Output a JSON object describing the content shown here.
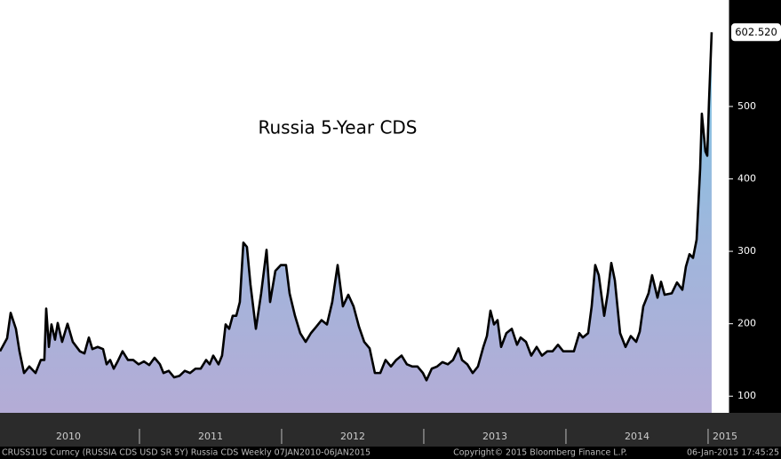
{
  "chart_data": {
    "type": "line",
    "title": "Russia 5-Year CDS",
    "x": [
      2010.019,
      2010.069,
      2010.094,
      2010.131,
      2010.156,
      2010.188,
      2010.225,
      2010.269,
      2010.306,
      2010.331,
      2010.344,
      2010.363,
      2010.381,
      2010.406,
      2010.425,
      2010.456,
      2010.494,
      2010.531,
      2010.581,
      2010.613,
      2010.644,
      2010.669,
      2010.706,
      2010.744,
      2010.769,
      2010.794,
      2010.819,
      2010.844,
      2010.881,
      2010.919,
      2010.956,
      2010.994,
      2011.031,
      2011.069,
      2011.106,
      2011.144,
      2011.169,
      2011.206,
      2011.244,
      2011.281,
      2011.319,
      2011.356,
      2011.394,
      2011.431,
      2011.469,
      2011.494,
      2011.519,
      2011.556,
      2011.581,
      2011.606,
      2011.631,
      2011.656,
      2011.681,
      2011.706,
      2011.731,
      2011.756,
      2011.781,
      2011.819,
      2011.856,
      2011.894,
      2011.919,
      2011.956,
      2011.994,
      2012.031,
      2012.056,
      2012.094,
      2012.131,
      2012.169,
      2012.206,
      2012.244,
      2012.281,
      2012.319,
      2012.356,
      2012.394,
      2012.431,
      2012.469,
      2012.506,
      2012.544,
      2012.581,
      2012.619,
      2012.656,
      2012.694,
      2012.731,
      2012.769,
      2012.806,
      2012.844,
      2012.881,
      2012.919,
      2012.956,
      2012.994,
      2013.019,
      2013.056,
      2013.094,
      2013.131,
      2013.169,
      2013.206,
      2013.244,
      2013.269,
      2013.306,
      2013.344,
      2013.381,
      2013.419,
      2013.444,
      2013.469,
      2013.494,
      2013.519,
      2013.544,
      2013.581,
      2013.619,
      2013.656,
      2013.681,
      2013.719,
      2013.756,
      2013.794,
      2013.831,
      2013.869,
      2013.906,
      2013.944,
      2013.981,
      2014.019,
      2014.056,
      2014.094,
      2014.119,
      2014.156,
      2014.181,
      2014.206,
      2014.231,
      2014.269,
      2014.294,
      2014.319,
      2014.344,
      2014.381,
      2014.419,
      2014.456,
      2014.494,
      2014.519,
      2014.544,
      2014.581,
      2014.606,
      2014.644,
      2014.669,
      2014.694,
      2014.744,
      2014.781,
      2014.819,
      2014.844,
      2014.869,
      2014.894,
      2014.919,
      2014.944,
      2014.956,
      2014.981,
      2014.994,
      2015.006,
      2015.025
    ],
    "values": [
      162,
      180,
      215,
      193,
      162,
      132,
      141,
      132,
      150,
      150,
      221,
      168,
      199,
      178,
      201,
      175,
      200,
      175,
      162,
      159,
      181,
      165,
      168,
      165,
      144,
      150,
      138,
      147,
      162,
      150,
      150,
      144,
      148,
      143,
      153,
      144,
      132,
      135,
      126,
      128,
      135,
      132,
      138,
      138,
      150,
      144,
      156,
      144,
      156,
      199,
      193,
      211,
      211,
      230,
      312,
      306,
      254,
      193,
      242,
      302,
      230,
      273,
      281,
      281,
      242,
      211,
      187,
      175,
      187,
      196,
      205,
      199,
      230,
      281,
      224,
      240,
      224,
      196,
      175,
      166,
      132,
      132,
      150,
      141,
      150,
      156,
      144,
      141,
      141,
      132,
      122,
      138,
      141,
      147,
      144,
      150,
      166,
      150,
      144,
      132,
      141,
      168,
      183,
      218,
      199,
      205,
      168,
      187,
      193,
      171,
      181,
      175,
      156,
      168,
      156,
      162,
      162,
      171,
      162,
      162,
      162,
      187,
      181,
      187,
      224,
      281,
      267,
      211,
      242,
      284,
      260,
      187,
      168,
      183,
      175,
      189,
      224,
      242,
      267,
      236,
      258,
      240,
      242,
      257,
      247,
      279,
      296,
      291,
      316,
      414,
      490,
      438,
      432,
      505,
      602.52
    ],
    "value_labels": [
      null,
      null,
      null,
      null,
      null,
      null,
      null,
      null,
      null,
      null,
      null,
      null,
      null,
      null,
      null,
      null,
      null,
      null,
      null,
      null,
      null,
      null,
      null,
      null,
      null,
      null,
      null,
      null,
      null,
      null,
      null,
      null,
      null,
      null,
      null,
      null,
      null,
      null,
      null,
      null,
      null,
      null,
      null,
      null,
      null,
      null,
      null,
      null,
      null,
      null,
      null,
      null,
      null,
      null,
      null,
      null,
      null,
      null,
      null,
      null,
      null,
      null,
      null,
      null,
      null,
      null,
      null,
      null,
      null,
      null,
      null,
      null,
      null,
      null,
      null,
      null,
      null,
      null,
      null,
      null,
      null,
      null,
      null,
      null,
      null,
      null,
      null,
      null,
      null,
      null,
      null,
      null,
      null,
      null,
      null,
      null,
      null,
      null,
      null,
      null,
      null,
      null,
      null,
      null,
      null,
      null,
      null,
      null,
      null,
      null,
      null,
      null,
      null,
      null,
      null,
      null,
      null,
      null,
      null,
      null,
      null,
      null,
      null,
      null,
      null,
      null,
      null,
      null,
      null,
      null,
      null,
      null,
      null,
      null,
      null,
      null,
      null,
      null,
      null,
      null,
      null,
      null,
      null,
      null,
      null,
      null,
      null,
      null,
      null,
      null,
      null,
      null,
      null,
      null,
      "602.520"
    ],
    "color": "#000000",
    "xlim": [
      2010.019,
      2015.144
    ],
    "xticks": [
      2010,
      2011,
      2012,
      2013,
      2014,
      2015
    ],
    "ylim": [
      77,
      647
    ],
    "yticks": [
      100,
      200,
      300,
      400,
      500
    ],
    "footer": [
      "CRUSS1U5 Curncy (RUSSIA CDS USD SR 5Y) Russia CDS  Weekly 07JAN2010-06JAN2015",
      "Copyright© 2015 Bloomberg Finance L.P.",
      "06-Jan-2015 17:45:25"
    ]
  }
}
